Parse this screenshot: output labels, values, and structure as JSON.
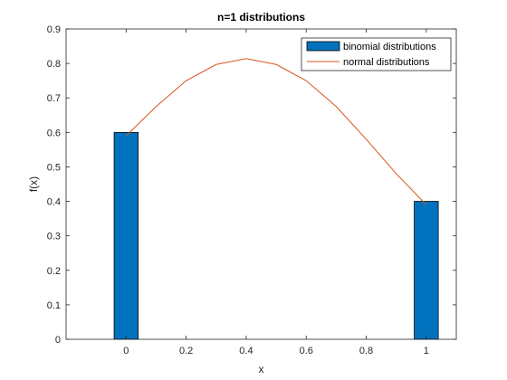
{
  "chart_data": {
    "type": "bar",
    "title": "n=1 distributions",
    "xlabel": "x",
    "ylabel": "f(x)",
    "xlim": [
      -0.2,
      1.1
    ],
    "ylim": [
      0,
      0.9
    ],
    "x_ticks": [
      0,
      0.2,
      0.4,
      0.6,
      0.8,
      1
    ],
    "x_tick_labels": [
      "0",
      "0.2",
      "0.4",
      "0.6",
      "0.8",
      "1"
    ],
    "y_ticks": [
      0,
      0.1,
      0.2,
      0.3,
      0.4,
      0.5,
      0.6,
      0.7,
      0.8,
      0.9
    ],
    "y_tick_labels": [
      "0",
      "0.1",
      "0.2",
      "0.3",
      "0.4",
      "0.5",
      "0.6",
      "0.7",
      "0.8",
      "0.9"
    ],
    "grid": false,
    "legend_position": "top-right",
    "bar_width": 0.08,
    "series": [
      {
        "name": "binomial distributions",
        "type": "bar",
        "color": "#0072BD",
        "x": [
          0,
          1
        ],
        "values": [
          0.6,
          0.4
        ]
      },
      {
        "name": "normal distributions",
        "type": "line",
        "color": "#D95319",
        "x": [
          0,
          0.1,
          0.2,
          0.3,
          0.4,
          0.5,
          0.6,
          0.7,
          0.8,
          0.9,
          1
        ],
        "values": [
          0.59,
          0.675,
          0.75,
          0.797,
          0.814,
          0.797,
          0.75,
          0.675,
          0.58,
          0.48,
          0.39
        ]
      }
    ]
  }
}
